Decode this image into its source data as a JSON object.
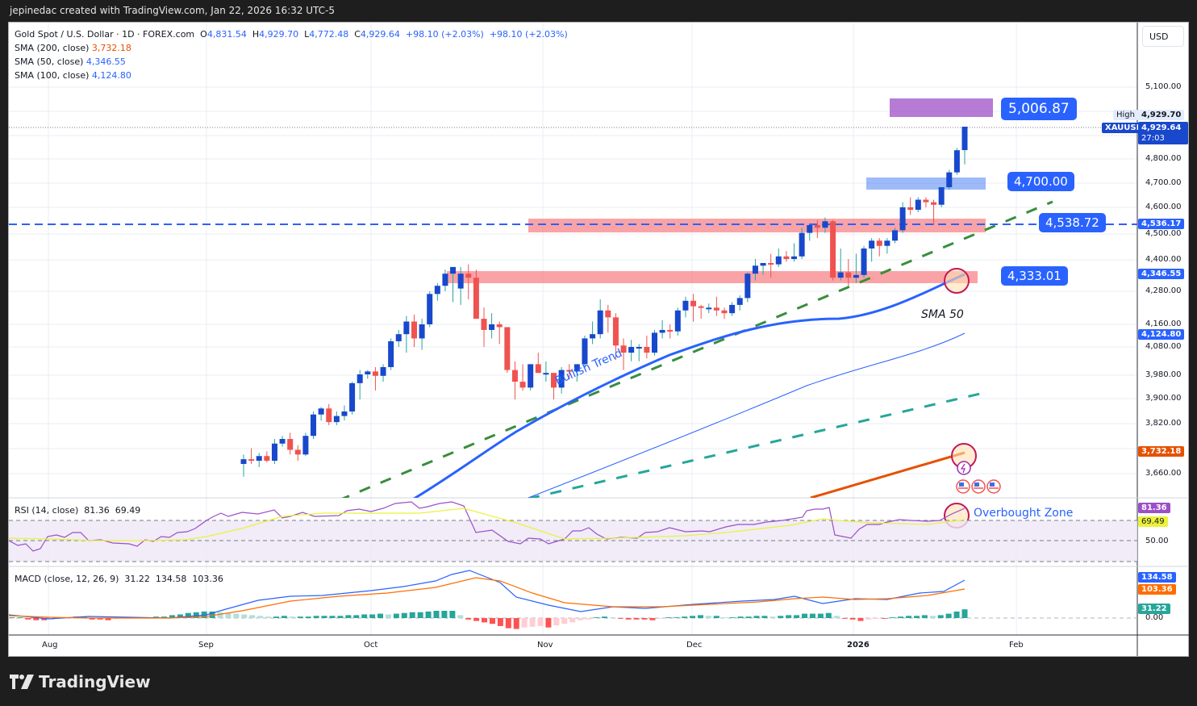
{
  "header": {
    "attribution": "jepinedac created with TradingView.com, Jan 22, 2026 16:32 UTC-5"
  },
  "symbol": {
    "title": "Gold Spot / U.S. Dollar · 1D · FOREX.com",
    "open_label": "O",
    "open": "4,831.54",
    "high_label": "H",
    "high": "4,929.70",
    "low_label": "L",
    "low": "4,772.48",
    "close_label": "C",
    "close": "4,929.64",
    "change": "+98.10 (+2.03%)",
    "change2": "+98.10 (+2.03%)",
    "ticker": "XAUUSD",
    "countdown": "27:03",
    "high_tag_label": "High"
  },
  "indicators": {
    "sma200": {
      "label": "SMA (200, close)",
      "value": "3,732.18",
      "color": "#e65100"
    },
    "sma50": {
      "label": "SMA (50, close)",
      "value": "4,346.55",
      "color": "#2962ff"
    },
    "sma100": {
      "label": "SMA (100, close)",
      "value": "4,124.80",
      "color": "#2962ff"
    },
    "rsi": {
      "label": "RSI (14, close)",
      "value": "81.36",
      "ma": "69.49"
    },
    "macd": {
      "label": "MACD (close, 12, 26, 9)",
      "hist": "31.22",
      "macd": "134.58",
      "signal": "103.36"
    }
  },
  "currency_button": "USD",
  "price_axis": [
    "5,100.00",
    "4,800.00",
    "4,700.00",
    "4,600.00",
    "4,500.00",
    "4,400.00",
    "4,280.00",
    "4,160.00",
    "4,080.00",
    "3,980.00",
    "3,900.00",
    "3,820.00",
    "3,660.00"
  ],
  "price_tags": {
    "high": "4,929.70",
    "last": "4,929.64",
    "dashed_level": "4,536.17",
    "sma50": "4,346.55",
    "sma100": "4,124.80",
    "sma200": "3,732.18"
  },
  "rsi_axis": {
    "rsi_tag": "81.36",
    "ma_tag": "69.49",
    "mid": "50.00"
  },
  "macd_axis": {
    "macd_tag": "134.58",
    "signal_tag": "103.36",
    "hist_tag": "31.22",
    "zero": "0.00"
  },
  "time_axis": [
    "Aug",
    "Sep",
    "Oct",
    "Nov",
    "Dec",
    "2026",
    "Feb"
  ],
  "annotations": {
    "target_5006": "5,006.87",
    "level_4700": "4,700.00",
    "level_4538": "4,538.72",
    "level_4333": "4,333.01",
    "bullish_trend": "Bullish Trend",
    "sma50_label": "SMA 50",
    "overbought": "Overbought Zone"
  },
  "brand": "TradingView",
  "chart_data": {
    "type": "candlestick",
    "title": "Gold Spot / U.S. Dollar · 1D · FOREX.com",
    "x_ticks": [
      "Aug",
      "Sep",
      "Oct",
      "Nov",
      "Dec",
      "2026",
      "Feb"
    ],
    "ylabel": "USD",
    "ylim": [
      3620,
      5150
    ],
    "scale": "log",
    "last_ohlc": {
      "open": 4831.54,
      "high": 4929.7,
      "low": 4772.48,
      "close": 4929.64
    },
    "candles_ohlc_approx": [
      [
        3690,
        3720,
        3650,
        3705
      ],
      [
        3705,
        3740,
        3690,
        3700
      ],
      [
        3700,
        3725,
        3680,
        3715
      ],
      [
        3715,
        3730,
        3695,
        3700
      ],
      [
        3700,
        3770,
        3690,
        3755
      ],
      [
        3755,
        3780,
        3745,
        3770
      ],
      [
        3770,
        3790,
        3720,
        3735
      ],
      [
        3735,
        3750,
        3700,
        3720
      ],
      [
        3720,
        3790,
        3715,
        3780
      ],
      [
        3780,
        3860,
        3770,
        3850
      ],
      [
        3850,
        3875,
        3830,
        3870
      ],
      [
        3870,
        3885,
        3815,
        3825
      ],
      [
        3825,
        3860,
        3815,
        3845
      ],
      [
        3845,
        3880,
        3830,
        3860
      ],
      [
        3860,
        3960,
        3850,
        3955
      ],
      [
        3955,
        4000,
        3900,
        3985
      ],
      [
        3985,
        4000,
        3970,
        3995
      ],
      [
        3995,
        4010,
        3930,
        3980
      ],
      [
        3980,
        4020,
        3960,
        4010
      ],
      [
        4010,
        4110,
        4000,
        4100
      ],
      [
        4100,
        4140,
        4080,
        4125
      ],
      [
        4125,
        4190,
        4060,
        4170
      ],
      [
        4170,
        4195,
        4080,
        4110
      ],
      [
        4110,
        4180,
        4070,
        4160
      ],
      [
        4160,
        4280,
        4150,
        4270
      ],
      [
        4270,
        4310,
        4245,
        4300
      ],
      [
        4300,
        4360,
        4280,
        4345
      ],
      [
        4345,
        4370,
        4240,
        4370
      ],
      [
        4290,
        4370,
        4230,
        4345
      ],
      [
        4345,
        4380,
        4250,
        4330
      ],
      [
        4330,
        4360,
        4190,
        4180
      ],
      [
        4180,
        4220,
        4080,
        4140
      ],
      [
        4140,
        4200,
        4110,
        4160
      ],
      [
        4160,
        4170,
        4090,
        4150
      ],
      [
        4150,
        4150,
        3990,
        4000
      ],
      [
        4000,
        4030,
        3900,
        3960
      ],
      [
        3960,
        4020,
        3930,
        3940
      ],
      [
        3940,
        4020,
        3930,
        4020
      ],
      [
        4020,
        4060,
        3990,
        3990
      ],
      [
        3990,
        4030,
        3960,
        3990
      ],
      [
        3990,
        3985,
        3900,
        3940
      ],
      [
        3940,
        4010,
        3920,
        4000
      ],
      [
        4000,
        4020,
        3970,
        3995
      ],
      [
        3995,
        4020,
        3960,
        4020
      ],
      [
        4020,
        4120,
        4010,
        4110
      ],
      [
        4110,
        4170,
        4090,
        4125
      ],
      [
        4125,
        4250,
        4110,
        4210
      ],
      [
        4210,
        4230,
        4130,
        4185
      ],
      [
        4185,
        4200,
        4035,
        4085
      ],
      [
        4085,
        4110,
        4000,
        4060
      ],
      [
        4060,
        4105,
        4030,
        4080
      ],
      [
        4080,
        4090,
        4030,
        4080
      ],
      [
        4080,
        4120,
        4040,
        4060
      ],
      [
        4060,
        4140,
        4050,
        4130
      ],
      [
        4130,
        4175,
        4110,
        4140
      ],
      [
        4140,
        4160,
        4110,
        4135
      ],
      [
        4135,
        4220,
        4120,
        4210
      ],
      [
        4210,
        4260,
        4185,
        4245
      ],
      [
        4245,
        4270,
        4170,
        4225
      ],
      [
        4225,
        4230,
        4180,
        4220
      ],
      [
        4220,
        4235,
        4200,
        4220
      ],
      [
        4220,
        4260,
        4190,
        4210
      ],
      [
        4210,
        4220,
        4180,
        4200
      ],
      [
        4200,
        4240,
        4190,
        4230
      ],
      [
        4230,
        4265,
        4210,
        4255
      ],
      [
        4255,
        4350,
        4240,
        4345
      ],
      [
        4345,
        4400,
        4320,
        4375
      ],
      [
        4375,
        4385,
        4340,
        4385
      ],
      [
        4385,
        4420,
        4330,
        4380
      ],
      [
        4380,
        4440,
        4370,
        4410
      ],
      [
        4410,
        4430,
        4390,
        4400
      ],
      [
        4400,
        4460,
        4390,
        4410
      ],
      [
        4410,
        4520,
        4400,
        4500
      ],
      [
        4500,
        4530,
        4470,
        4530
      ],
      [
        4530,
        4550,
        4480,
        4520
      ],
      [
        4520,
        4560,
        4500,
        4545
      ],
      [
        4545,
        4550,
        4320,
        4330
      ],
      [
        4330,
        4440,
        4320,
        4350
      ],
      [
        4350,
        4400,
        4300,
        4330
      ],
      [
        4330,
        4420,
        4310,
        4340
      ],
      [
        4340,
        4450,
        4330,
        4440
      ],
      [
        4440,
        4480,
        4390,
        4470
      ],
      [
        4470,
        4480,
        4410,
        4450
      ],
      [
        4450,
        4480,
        4420,
        4470
      ],
      [
        4470,
        4520,
        4460,
        4510
      ],
      [
        4510,
        4620,
        4500,
        4600
      ],
      [
        4600,
        4640,
        4570,
        4590
      ],
      [
        4590,
        4640,
        4580,
        4630
      ],
      [
        4630,
        4640,
        4600,
        4620
      ],
      [
        4620,
        4630,
        4530,
        4610
      ],
      [
        4610,
        4680,
        4600,
        4680
      ],
      [
        4680,
        4750,
        4670,
        4740
      ],
      [
        4740,
        4840,
        4730,
        4831
      ],
      [
        4831.54,
        4929.7,
        4772.48,
        4929.64
      ]
    ],
    "horizontal_zones": [
      {
        "label": "5,006.87",
        "color": "#9c4fc7",
        "top": 5030,
        "bottom": 4985
      },
      {
        "label": "4,700.00",
        "color": "#6f9cf7",
        "top": 4720,
        "bottom": 4680
      },
      {
        "label": "4,538.72",
        "color": "#f77c80",
        "top": 4555,
        "bottom": 4510
      },
      {
        "label": "4,333.01",
        "color": "#f77c80",
        "top": 4355,
        "bottom": 4315
      }
    ],
    "lines": [
      {
        "name": "SMA 50",
        "value": 4346.55,
        "color": "#2962ff"
      },
      {
        "name": "SMA 100",
        "value": 4124.8,
        "color": "#2962ff"
      },
      {
        "name": "SMA 200",
        "value": 3732.18,
        "color": "#e65100"
      },
      {
        "name": "Dashed level",
        "value": 4536.17,
        "color": "#2962ff"
      }
    ],
    "rsi": {
      "value": 81.36,
      "ma": 69.49,
      "bands": [
        70,
        50,
        30
      ]
    },
    "macd": {
      "hist": 31.22,
      "macd": 134.58,
      "signal": 103.36
    }
  }
}
